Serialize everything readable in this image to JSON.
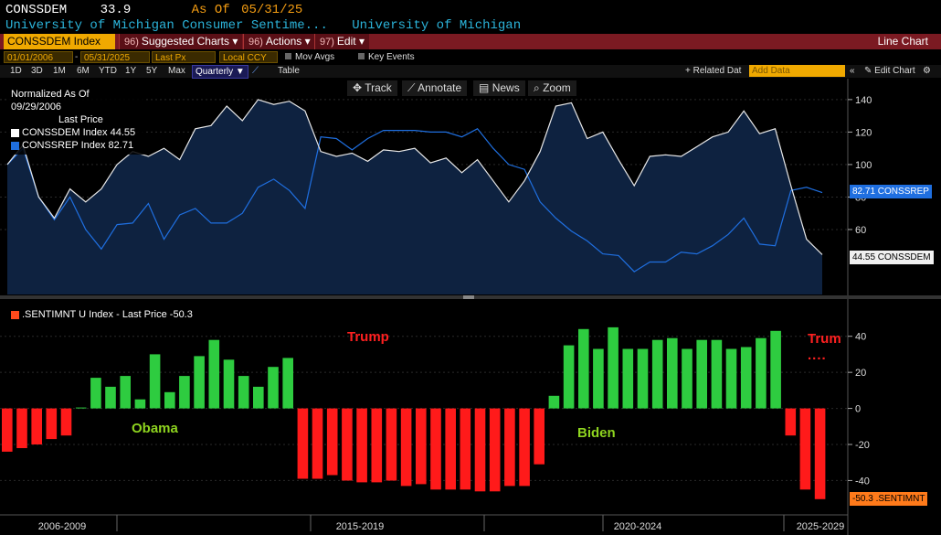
{
  "header": {
    "ticker": "CONSSDEM",
    "value": "33.9",
    "as_of_label": "As Of",
    "as_of_date": "05/31/25",
    "security_name": "University of Michigan Consumer Sentime...",
    "source": "University of Michigan"
  },
  "toolbar": {
    "ticker_field": "CONSSDEM Index",
    "suggested_num": "96)",
    "suggested_label": "Suggested Charts",
    "actions_num": "96)",
    "actions_label": "Actions",
    "edit_num": "97)",
    "edit_label": "Edit",
    "chart_type": "Line Chart"
  },
  "options": {
    "start_date": "01/01/2006",
    "end_date": "05/31/2025",
    "price_field": "Last Px",
    "currency": "Local CCY",
    "mov_avgs": "Mov Avgs",
    "key_events": "Key Events"
  },
  "periods": {
    "items": [
      "1D",
      "3D",
      "1M",
      "6M",
      "YTD",
      "1Y",
      "5Y",
      "Max"
    ],
    "frequency": "Quarterly",
    "table": "Table",
    "related": "+ Related Dat",
    "add_data_placeholder": "Add Data",
    "edit_chart": "Edit Chart"
  },
  "tools": {
    "track": "Track",
    "annotate": "Annotate",
    "news": "News",
    "zoom": "Zoom"
  },
  "legend_top": {
    "line1": "Normalized As Of 09/29/2006",
    "line2": "Last Price",
    "series": [
      {
        "label": "CONSSDEM Index 44.55",
        "color": "#ffffff"
      },
      {
        "label": "CONSSREP Index 82.71",
        "color": "#1f6fe0"
      }
    ]
  },
  "legend_bottom": {
    "label": ".SENTIMNT U Index - Last Price -50.3",
    "color": "#ff4a1c"
  },
  "tags": {
    "rep": "82.71 CONSSREP",
    "dem": "44.55 CONSSDEM",
    "sent": "-50.3 .SENTIMNT"
  },
  "annotations": {
    "obama": "Obama",
    "trump": "Trump",
    "biden": "Biden",
    "trump2": "Trum",
    "trump2_dots": "...."
  },
  "colors": {
    "dem_line": "#e8e8e8",
    "rep_line": "#1f6fe0",
    "area_fill": "#0e2240",
    "bar_pos": "#2ecc40",
    "bar_neg": "#ff1a1a",
    "annot_green": "#8ed41f",
    "annot_red": "#ff2020"
  },
  "chart_data": [
    {
      "type": "line",
      "title": "",
      "ylim": [
        20,
        145
      ],
      "yticks": [
        60,
        80,
        100,
        120,
        140
      ],
      "x_labels": [
        "2006-2009",
        "2015-2019",
        "2020-2024",
        "2025-2029"
      ],
      "series": [
        {
          "name": "CONSSDEM Index",
          "values": [
            100,
            112,
            80,
            67,
            85,
            77,
            85,
            100,
            108,
            105,
            110,
            103,
            122,
            124,
            136,
            127,
            140,
            137,
            139,
            133,
            108,
            105,
            107,
            102,
            109,
            108,
            110,
            101,
            104,
            95,
            103,
            90,
            77,
            90,
            108,
            136,
            138,
            116,
            120,
            103,
            87,
            105,
            106,
            105,
            111,
            117,
            120,
            133,
            119,
            122,
            87,
            54,
            44.55
          ]
        },
        {
          "name": "CONSSREP Index",
          "values": [
            100,
            110,
            80,
            66,
            80,
            60,
            48,
            63,
            64,
            76,
            54,
            69,
            73,
            64,
            64,
            70,
            86,
            91,
            84,
            73,
            117,
            116,
            109,
            116,
            121,
            121,
            121,
            120,
            120,
            117,
            122,
            110,
            100,
            97,
            77,
            67,
            59,
            53,
            45,
            44,
            34,
            40,
            40,
            46,
            45,
            50,
            57,
            67,
            51,
            50,
            84,
            86,
            82.71
          ]
        }
      ]
    },
    {
      "type": "bar",
      "title": "",
      "ylim": [
        -55,
        50
      ],
      "yticks": [
        -40,
        -20,
        0,
        20,
        40
      ],
      "series": [
        {
          "name": ".SENTIMNT U Index",
          "values": [
            -24,
            -22,
            -20,
            -17,
            -15,
            0.5,
            17,
            12,
            18,
            5,
            30,
            9,
            18,
            29,
            38,
            27,
            18,
            12,
            23,
            28,
            -39,
            -39,
            -37,
            -40,
            -41,
            -41,
            -40,
            -43,
            -42,
            -45,
            -45,
            -45,
            -46,
            -46,
            -43,
            -43,
            -31,
            7,
            35,
            44,
            33,
            45,
            33,
            33,
            38,
            39,
            33,
            38,
            38,
            33,
            34,
            39,
            43,
            -15,
            -45,
            -50.3
          ]
        }
      ]
    }
  ]
}
